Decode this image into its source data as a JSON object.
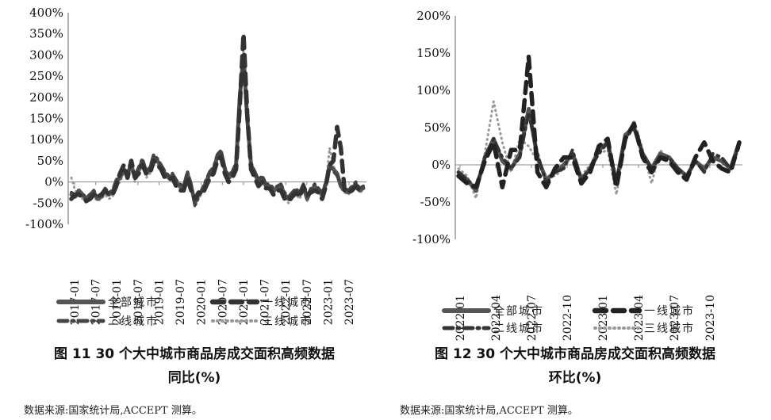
{
  "chart_data": [
    {
      "type": "line",
      "caption_line1": "图 11 30 个大中城市商品房成交面积高频数据",
      "caption_line2": "同比(%)",
      "source": "数据来源:国家统计局,ACCEPT 测算。",
      "y_ticks": [
        "400%",
        "350%",
        "300%",
        "250%",
        "200%",
        "150%",
        "100%",
        "50%",
        "0%",
        "-50%",
        "-100%"
      ],
      "ylim": [
        -100,
        400
      ],
      "x_ticks": [
        "2017-01",
        "2017-07",
        "2018-01",
        "2018-07",
        "2019-01",
        "2019-07",
        "2020-01",
        "2020-07",
        "2021-01",
        "2021-07",
        "2022-01",
        "2022-07",
        "2023-01",
        "2023-07"
      ],
      "legend_position": "bottom",
      "series": [
        {
          "name": "全部城市",
          "color": "#555555",
          "values": [
            -30,
            -35,
            -20,
            -30,
            -40,
            -30,
            -25,
            -40,
            -35,
            -20,
            -30,
            -25,
            0,
            10,
            30,
            20,
            40,
            10,
            30,
            50,
            20,
            30,
            60,
            50,
            35,
            20,
            10,
            15,
            0,
            -10,
            -15,
            20,
            -10,
            -50,
            -30,
            -20,
            0,
            20,
            30,
            60,
            70,
            30,
            10,
            20,
            40,
            200,
            300,
            150,
            40,
            20,
            0,
            10,
            -10,
            -10,
            -20,
            -15,
            -10,
            -30,
            -40,
            -30,
            -20,
            -30,
            -10,
            -40,
            -20,
            -10,
            -20,
            -30,
            -5,
            40,
            30,
            20,
            -10,
            -20,
            -25,
            -15,
            -5,
            -20,
            -15
          ]
        },
        {
          "name": "一线城市",
          "color": "#333333",
          "values": [
            -40,
            -30,
            -30,
            -35,
            -45,
            -40,
            -30,
            -35,
            -30,
            -20,
            -30,
            -30,
            -10,
            20,
            40,
            10,
            50,
            10,
            20,
            40,
            20,
            20,
            50,
            40,
            30,
            10,
            5,
            10,
            -10,
            -20,
            -20,
            10,
            -20,
            -40,
            -25,
            -30,
            -10,
            10,
            20,
            50,
            60,
            20,
            0,
            10,
            30,
            180,
            350,
            160,
            30,
            10,
            -10,
            0,
            -15,
            -15,
            -30,
            -20,
            -20,
            -40,
            -45,
            -35,
            -25,
            -35,
            -10,
            -30,
            -25,
            -20,
            -25,
            -40,
            -10,
            40,
            50,
            130,
            80,
            -20,
            -25,
            -20,
            -10,
            -20,
            -15
          ]
        },
        {
          "name": "二线城市",
          "color": "#444444",
          "values": [
            -25,
            -30,
            -25,
            -30,
            -35,
            -30,
            -20,
            -35,
            -30,
            -15,
            -25,
            -20,
            5,
            15,
            25,
            25,
            35,
            15,
            35,
            55,
            25,
            35,
            65,
            55,
            40,
            25,
            15,
            20,
            5,
            -5,
            -10,
            25,
            -5,
            -55,
            -35,
            -15,
            5,
            25,
            35,
            65,
            75,
            35,
            15,
            25,
            45,
            210,
            280,
            140,
            45,
            25,
            5,
            15,
            -5,
            -5,
            -15,
            -10,
            -5,
            -25,
            -35,
            -25,
            -15,
            -25,
            -5,
            -35,
            -15,
            -5,
            -15,
            -25,
            0,
            35,
            25,
            15,
            -5,
            -15,
            -20,
            -10,
            0,
            -15,
            -10
          ]
        },
        {
          "name": "三线城市",
          "color": "#999999",
          "values": [
            10,
            -20,
            -30,
            -40,
            -50,
            -40,
            -35,
            -45,
            -40,
            -30,
            -40,
            -35,
            -10,
            0,
            20,
            10,
            30,
            0,
            20,
            40,
            10,
            20,
            40,
            40,
            25,
            15,
            5,
            10,
            -5,
            -15,
            -20,
            15,
            -15,
            -60,
            -40,
            -25,
            -5,
            15,
            25,
            50,
            60,
            25,
            5,
            15,
            35,
            170,
            310,
            130,
            35,
            15,
            -5,
            5,
            -15,
            -15,
            -25,
            -20,
            -15,
            -35,
            -50,
            -40,
            -30,
            -40,
            -20,
            -45,
            -25,
            -15,
            -25,
            -35,
            -10,
            80,
            40,
            10,
            -15,
            -25,
            -30,
            -20,
            -10,
            -25,
            -20
          ]
        }
      ]
    },
    {
      "type": "line",
      "caption_line1": "图 12 30 个大中城市商品房成交面积高频数据",
      "caption_line2": "环比(%)",
      "source": "数据来源:国家统计局,ACCEPT 测算。",
      "y_ticks": [
        "200%",
        "150%",
        "100%",
        "50%",
        "0%",
        "-50%",
        "-100%"
      ],
      "ylim": [
        -100,
        200
      ],
      "x_ticks": [
        "2022-01",
        "2022-04",
        "2022-07",
        "2022-10",
        "2023-01",
        "2023-04",
        "2023-07",
        "2023-10"
      ],
      "legend_position": "bottom",
      "series": [
        {
          "name": "全部城市",
          "color": "#555555",
          "values": [
            -10,
            -20,
            -35,
            10,
            35,
            5,
            -5,
            15,
            75,
            10,
            -20,
            -10,
            0,
            15,
            -20,
            -5,
            20,
            30,
            -25,
            40,
            50,
            15,
            -5,
            15,
            10,
            -5,
            -15,
            5,
            -5,
            10,
            5,
            -5,
            30
          ]
        },
        {
          "name": "一线城市",
          "color": "#222222",
          "values": [
            -15,
            -25,
            -30,
            5,
            30,
            -30,
            20,
            20,
            145,
            -10,
            -30,
            -5,
            10,
            10,
            -25,
            -10,
            25,
            35,
            -30,
            35,
            55,
            10,
            -10,
            10,
            5,
            -10,
            -20,
            10,
            30,
            5,
            -5,
            -10,
            30
          ]
        },
        {
          "name": "二线城市",
          "color": "#333333",
          "values": [
            -10,
            -20,
            -30,
            10,
            35,
            10,
            -5,
            10,
            70,
            15,
            -25,
            -10,
            -5,
            20,
            -20,
            -5,
            15,
            30,
            -20,
            35,
            50,
            15,
            -5,
            10,
            10,
            -5,
            -15,
            5,
            -10,
            15,
            10,
            -5,
            25
          ]
        },
        {
          "name": "三线城市",
          "color": "#999999",
          "values": [
            -5,
            -15,
            -45,
            15,
            85,
            30,
            -10,
            35,
            25,
            5,
            -15,
            -15,
            -5,
            20,
            -15,
            0,
            15,
            20,
            -40,
            30,
            60,
            20,
            -25,
            20,
            5,
            -10,
            -20,
            5,
            -10,
            10,
            5,
            -5,
            30
          ]
        }
      ]
    }
  ]
}
